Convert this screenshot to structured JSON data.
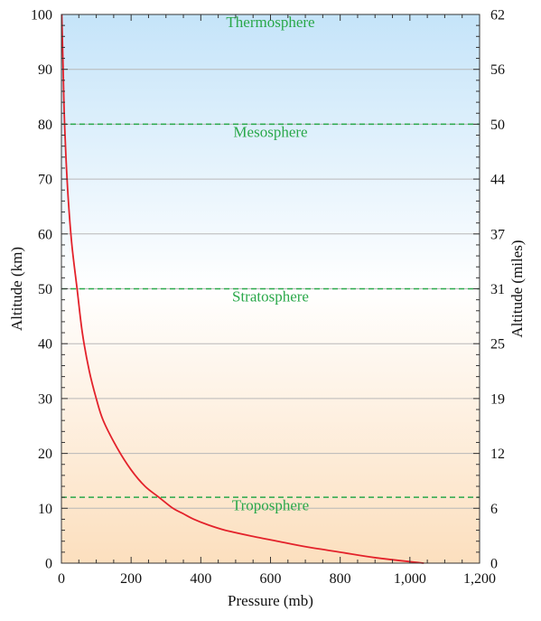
{
  "chart_data": {
    "type": "line",
    "xlabel": "Pressure (mb)",
    "ylabel_left": "Altitude (km)",
    "ylabel_right": "Altitude (miles)",
    "xlim": [
      0,
      1200
    ],
    "ylim": [
      0,
      100
    ],
    "x_ticks": [
      {
        "value": 0,
        "label": "0"
      },
      {
        "value": 200,
        "label": "200"
      },
      {
        "value": 400,
        "label": "400"
      },
      {
        "value": 600,
        "label": "600"
      },
      {
        "value": 800,
        "label": "800"
      },
      {
        "value": 1000,
        "label": "1,000"
      },
      {
        "value": 1200,
        "label": "1,200"
      }
    ],
    "y_left_ticks": [
      {
        "value": 0,
        "label": "0"
      },
      {
        "value": 10,
        "label": "10"
      },
      {
        "value": 20,
        "label": "20"
      },
      {
        "value": 30,
        "label": "30"
      },
      {
        "value": 40,
        "label": "40"
      },
      {
        "value": 50,
        "label": "50"
      },
      {
        "value": 60,
        "label": "60"
      },
      {
        "value": 70,
        "label": "70"
      },
      {
        "value": 80,
        "label": "80"
      },
      {
        "value": 90,
        "label": "90"
      },
      {
        "value": 100,
        "label": "100"
      }
    ],
    "y_right_ticks": [
      {
        "value": 0,
        "label": "0"
      },
      {
        "value": 10,
        "label": "6"
      },
      {
        "value": 20,
        "label": "12"
      },
      {
        "value": 30,
        "label": "19"
      },
      {
        "value": 40,
        "label": "25"
      },
      {
        "value": 50,
        "label": "31"
      },
      {
        "value": 60,
        "label": "37"
      },
      {
        "value": 70,
        "label": "44"
      },
      {
        "value": 80,
        "label": "50"
      },
      {
        "value": 90,
        "label": "56"
      },
      {
        "value": 100,
        "label": "62"
      }
    ],
    "grid": true,
    "boundaries": [
      {
        "altitude": 12
      },
      {
        "altitude": 50
      },
      {
        "altitude": 80
      }
    ],
    "layers": [
      {
        "label": "Troposphere",
        "altitude": 10
      },
      {
        "label": "Stratosphere",
        "altitude": 48
      },
      {
        "label": "Mesosphere",
        "altitude": 78
      },
      {
        "label": "Thermosphere",
        "altitude": 98
      }
    ],
    "series": [
      {
        "color": "#e3222b",
        "points": [
          [
            1040,
            0
          ],
          [
            900,
            1
          ],
          [
            800,
            2
          ],
          [
            700,
            3
          ],
          [
            620,
            4
          ],
          [
            540,
            5
          ],
          [
            470,
            6
          ],
          [
            420,
            7
          ],
          [
            380,
            8
          ],
          [
            350,
            9
          ],
          [
            320,
            10
          ],
          [
            280,
            12
          ],
          [
            240,
            14
          ],
          [
            200,
            17
          ],
          [
            160,
            21
          ],
          [
            120,
            26
          ],
          [
            100,
            30
          ],
          [
            80,
            35
          ],
          [
            60,
            42
          ],
          [
            45,
            50
          ],
          [
            30,
            58
          ],
          [
            20,
            66
          ],
          [
            13,
            74
          ],
          [
            8,
            82
          ],
          [
            5,
            90
          ],
          [
            3,
            95
          ],
          [
            1,
            100
          ]
        ]
      }
    ],
    "colors": {
      "background_bottom": "#fcdfbe",
      "background_mid": "#ffffff",
      "background_top": "#c5e4f9",
      "curve": "#e3222b",
      "boundary": "#2aa84a",
      "layer_label": "#2aa84a",
      "grid": "#b8b8b8"
    }
  }
}
